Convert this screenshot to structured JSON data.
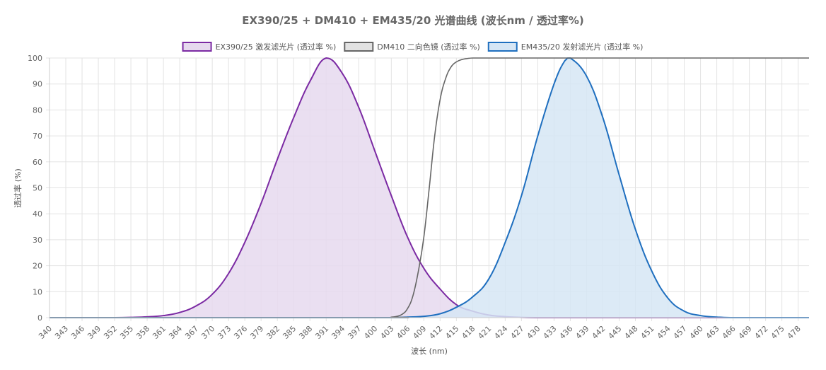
{
  "chart_data": {
    "type": "area",
    "title": "EX390/25 + DM410 + EM435/20 光谱曲线 (波长nm / 透过率%)",
    "xlabel": "波长 (nm)",
    "ylabel": "透过率 (%)",
    "ylim": [
      0,
      100
    ],
    "xlim": [
      340,
      480
    ],
    "y_ticks": [
      0,
      10,
      20,
      30,
      40,
      50,
      60,
      70,
      80,
      90,
      100
    ],
    "x_tick_labels": [
      "340",
      "343",
      "346",
      "349",
      "352",
      "355",
      "358",
      "361",
      "364",
      "367",
      "370",
      "373",
      "376",
      "379",
      "382",
      "385",
      "388",
      "391",
      "394",
      "397",
      "400",
      "403",
      "406",
      "409",
      "412",
      "415",
      "418",
      "421",
      "424",
      "427",
      "430",
      "433",
      "436",
      "439",
      "442",
      "445",
      "448",
      "451",
      "454",
      "457",
      "460",
      "463",
      "466",
      "469",
      "472",
      "475",
      "478"
    ],
    "grid": true,
    "legend_position": "top",
    "series": [
      {
        "name": "EX390/25 激发滤光片 (透过率 %)",
        "color": "#7b2aa3",
        "fill": "#e6d9ee",
        "x": [
          340,
          343,
          346,
          349,
          352,
          355,
          358,
          361,
          364,
          367,
          370,
          373,
          376,
          379,
          382,
          385,
          388,
          391,
          394,
          397,
          400,
          403,
          406,
          409,
          412,
          415,
          418,
          421,
          424,
          427,
          430,
          433,
          436,
          439,
          442,
          445,
          448,
          451,
          454,
          457,
          460,
          463,
          466,
          469,
          472,
          475,
          478,
          480
        ],
        "values": [
          0,
          0,
          0,
          0,
          0,
          0.1,
          0.3,
          0.8,
          2,
          4.5,
          9,
          17,
          29,
          44,
          61,
          77,
          91,
          100,
          94,
          81,
          64,
          47,
          31,
          19,
          11,
          5,
          2.5,
          1,
          0.4,
          0.1,
          0,
          0,
          0,
          0,
          0,
          0,
          0,
          0,
          0,
          0,
          0,
          0,
          0,
          0,
          0,
          0,
          0,
          0
        ]
      },
      {
        "name": "DM410 二向色镜 (透过率 %)",
        "color": "#666666",
        "fill": "#e2e2e2",
        "x": [
          340,
          400,
          403,
          404,
          405,
          406,
          407,
          408,
          409,
          410,
          411,
          412,
          413,
          414,
          415,
          416,
          417,
          418,
          420,
          425,
          430,
          440,
          450,
          460,
          470,
          480
        ],
        "values": [
          0,
          0,
          0.2,
          0.5,
          1.3,
          3.5,
          8.5,
          18,
          31,
          50,
          70,
          84,
          92,
          96.5,
          98.5,
          99.4,
          99.8,
          100,
          100,
          100,
          100,
          100,
          100,
          100,
          100,
          100
        ]
      },
      {
        "name": "EM435/20 发射滤光片 (透过率 %)",
        "color": "#1f6fbf",
        "fill": "#d6e6f5",
        "x": [
          340,
          400,
          403,
          406,
          409,
          412,
          415,
          418,
          421,
          424,
          427,
          430,
          433,
          435,
          436,
          439,
          442,
          445,
          448,
          451,
          454,
          457,
          460,
          463,
          466,
          469,
          472,
          480
        ],
        "values": [
          0,
          0,
          0,
          0.2,
          0.5,
          1.5,
          4,
          8,
          15,
          29,
          47,
          70,
          90,
          99,
          100,
          93,
          77,
          55,
          34,
          18,
          7.5,
          2.5,
          0.8,
          0.2,
          0,
          0,
          0,
          0
        ]
      }
    ]
  }
}
